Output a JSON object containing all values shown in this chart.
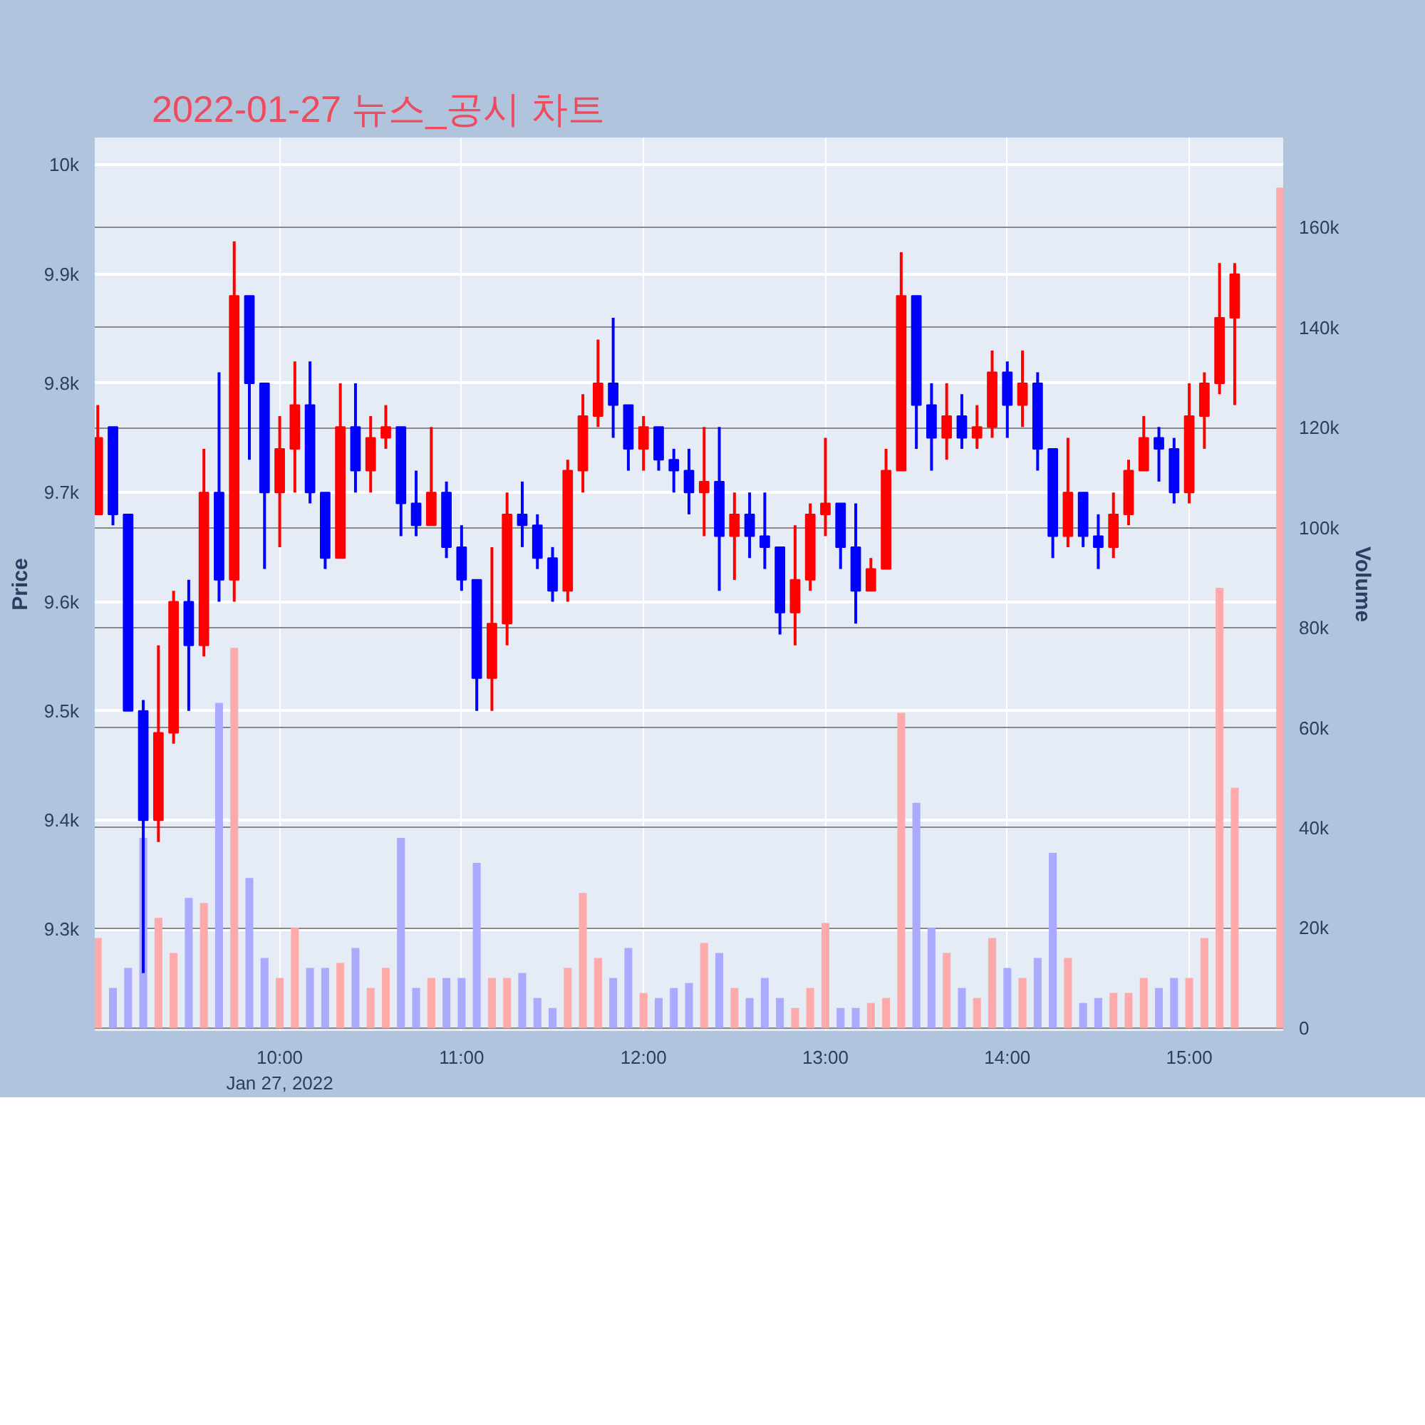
{
  "chart_data": {
    "type": "candlestick",
    "title": "2022-01-27 뉴스_공시 차트",
    "ylabel": "Price",
    "y2label": "Volume",
    "xlim": [
      "2022-01-27T08:59",
      "2022-01-27T15:31"
    ],
    "xticks": [
      {
        "value": "2022-01-27T10:00",
        "label": "10:00\nJan 27, 2022"
      },
      {
        "value": "2022-01-27T11:00",
        "label": "11:00"
      },
      {
        "value": "2022-01-27T12:00",
        "label": "12:00"
      },
      {
        "value": "2022-01-27T13:00",
        "label": "13:00"
      },
      {
        "value": "2022-01-27T14:00",
        "label": "14:00"
      },
      {
        "value": "2022-01-27T15:00",
        "label": "15:00"
      }
    ],
    "ylim": [
      9207,
      10025
    ],
    "yticks": [
      {
        "value": 9300,
        "label": "9.3k"
      },
      {
        "value": 9400,
        "label": "9.4k"
      },
      {
        "value": 9500,
        "label": "9.5k"
      },
      {
        "value": 9600,
        "label": "9.6k"
      },
      {
        "value": 9700,
        "label": "9.7k"
      },
      {
        "value": 9800,
        "label": "9.8k"
      },
      {
        "value": 9900,
        "label": "9.9k"
      },
      {
        "value": 10000,
        "label": "10k"
      }
    ],
    "y2lim": [
      -600,
      178000
    ],
    "y2ticks": [
      0,
      {
        "value": 20000,
        "label": "20k"
      },
      {
        "value": 40000,
        "label": "40k"
      },
      {
        "value": 60000,
        "label": "60k"
      },
      {
        "value": 80000,
        "label": "80k"
      },
      {
        "value": 100000,
        "label": "100k"
      },
      {
        "value": 120000,
        "label": "120k"
      },
      {
        "value": 140000,
        "label": "140k"
      },
      {
        "value": 160000,
        "label": "160k"
      }
    ],
    "grid": true,
    "series": [
      {
        "x": [
          "2022-01-27T09:00",
          "2022-01-27T09:05",
          "2022-01-27T09:10",
          "2022-01-27T09:15",
          "2022-01-27T09:20",
          "2022-01-27T09:25",
          "2022-01-27T09:30",
          "2022-01-27T09:35",
          "2022-01-27T09:40",
          "2022-01-27T09:45",
          "2022-01-27T09:50",
          "2022-01-27T09:55",
          "2022-01-27T10:00",
          "2022-01-27T10:05",
          "2022-01-27T10:10",
          "2022-01-27T10:15",
          "2022-01-27T10:20",
          "2022-01-27T10:25",
          "2022-01-27T10:30",
          "2022-01-27T10:35",
          "2022-01-27T10:40",
          "2022-01-27T10:45",
          "2022-01-27T10:50",
          "2022-01-27T10:55",
          "2022-01-27T11:00",
          "2022-01-27T11:05",
          "2022-01-27T11:10",
          "2022-01-27T11:15",
          "2022-01-27T11:20",
          "2022-01-27T11:25",
          "2022-01-27T11:30",
          "2022-01-27T11:35",
          "2022-01-27T11:40",
          "2022-01-27T11:45",
          "2022-01-27T11:50",
          "2022-01-27T11:55",
          "2022-01-27T12:00",
          "2022-01-27T12:05",
          "2022-01-27T12:10",
          "2022-01-27T12:15",
          "2022-01-27T12:20",
          "2022-01-27T12:25",
          "2022-01-27T12:30",
          "2022-01-27T12:35",
          "2022-01-27T12:40",
          "2022-01-27T12:45",
          "2022-01-27T12:50",
          "2022-01-27T12:55",
          "2022-01-27T13:00",
          "2022-01-27T13:05",
          "2022-01-27T13:10",
          "2022-01-27T13:15",
          "2022-01-27T13:20",
          "2022-01-27T13:25",
          "2022-01-27T13:30",
          "2022-01-27T13:35",
          "2022-01-27T13:40",
          "2022-01-27T13:45",
          "2022-01-27T13:50",
          "2022-01-27T13:55",
          "2022-01-27T14:00",
          "2022-01-27T14:05",
          "2022-01-27T14:10",
          "2022-01-27T14:15",
          "2022-01-27T14:20",
          "2022-01-27T14:25",
          "2022-01-27T14:30",
          "2022-01-27T14:35",
          "2022-01-27T14:40",
          "2022-01-27T14:45",
          "2022-01-27T14:50",
          "2022-01-27T14:55",
          "2022-01-27T15:00",
          "2022-01-27T15:05",
          "2022-01-27T15:10",
          "2022-01-27T15:15"
        ],
        "ohlc": [
          [
            9680,
            9780,
            9680,
            9750
          ],
          [
            9760,
            9760,
            9670,
            9680
          ],
          [
            9680,
            9680,
            9500,
            9500
          ],
          [
            9500,
            9510,
            9260,
            9400
          ],
          [
            9400,
            9560,
            9380,
            9480
          ],
          [
            9480,
            9610,
            9470,
            9600
          ],
          [
            9600,
            9620,
            9500,
            9560
          ],
          [
            9560,
            9740,
            9550,
            9700
          ],
          [
            9700,
            9810,
            9600,
            9620
          ],
          [
            9620,
            9930,
            9600,
            9880
          ],
          [
            9880,
            9880,
            9730,
            9800
          ],
          [
            9800,
            9800,
            9630,
            9700
          ],
          [
            9700,
            9770,
            9650,
            9740
          ],
          [
            9740,
            9820,
            9700,
            9780
          ],
          [
            9780,
            9820,
            9690,
            9700
          ],
          [
            9700,
            9700,
            9630,
            9640
          ],
          [
            9640,
            9800,
            9640,
            9760
          ],
          [
            9760,
            9800,
            9700,
            9720
          ],
          [
            9720,
            9770,
            9700,
            9750
          ],
          [
            9750,
            9780,
            9740,
            9760
          ],
          [
            9760,
            9760,
            9660,
            9690
          ],
          [
            9690,
            9720,
            9660,
            9670
          ],
          [
            9670,
            9760,
            9670,
            9700
          ],
          [
            9700,
            9710,
            9640,
            9650
          ],
          [
            9650,
            9670,
            9610,
            9620
          ],
          [
            9620,
            9620,
            9500,
            9530
          ],
          [
            9530,
            9650,
            9500,
            9580
          ],
          [
            9580,
            9700,
            9560,
            9680
          ],
          [
            9680,
            9710,
            9650,
            9670
          ],
          [
            9670,
            9680,
            9630,
            9640
          ],
          [
            9640,
            9650,
            9600,
            9610
          ],
          [
            9610,
            9730,
            9600,
            9720
          ],
          [
            9720,
            9790,
            9700,
            9770
          ],
          [
            9770,
            9840,
            9760,
            9800
          ],
          [
            9800,
            9860,
            9750,
            9780
          ],
          [
            9780,
            9780,
            9720,
            9740
          ],
          [
            9740,
            9770,
            9720,
            9760
          ],
          [
            9760,
            9760,
            9720,
            9730
          ],
          [
            9730,
            9740,
            9700,
            9720
          ],
          [
            9720,
            9740,
            9680,
            9700
          ],
          [
            9700,
            9760,
            9660,
            9710
          ],
          [
            9710,
            9760,
            9610,
            9660
          ],
          [
            9660,
            9700,
            9620,
            9680
          ],
          [
            9680,
            9700,
            9640,
            9660
          ],
          [
            9660,
            9700,
            9630,
            9650
          ],
          [
            9650,
            9650,
            9570,
            9590
          ],
          [
            9590,
            9670,
            9560,
            9620
          ],
          [
            9620,
            9690,
            9610,
            9680
          ],
          [
            9680,
            9750,
            9660,
            9690
          ],
          [
            9690,
            9690,
            9630,
            9650
          ],
          [
            9650,
            9690,
            9580,
            9610
          ],
          [
            9610,
            9640,
            9610,
            9630
          ],
          [
            9630,
            9740,
            9630,
            9720
          ],
          [
            9720,
            9920,
            9720,
            9880
          ],
          [
            9880,
            9880,
            9740,
            9780
          ],
          [
            9780,
            9800,
            9720,
            9750
          ],
          [
            9750,
            9800,
            9730,
            9770
          ],
          [
            9770,
            9790,
            9740,
            9750
          ],
          [
            9750,
            9780,
            9740,
            9760
          ],
          [
            9760,
            9830,
            9750,
            9810
          ],
          [
            9810,
            9820,
            9750,
            9780
          ],
          [
            9780,
            9830,
            9760,
            9800
          ],
          [
            9800,
            9810,
            9720,
            9740
          ],
          [
            9740,
            9740,
            9640,
            9660
          ],
          [
            9660,
            9750,
            9650,
            9700
          ],
          [
            9700,
            9700,
            9650,
            9660
          ],
          [
            9660,
            9680,
            9630,
            9650
          ],
          [
            9650,
            9700,
            9640,
            9680
          ],
          [
            9680,
            9730,
            9670,
            9720
          ],
          [
            9720,
            9770,
            9720,
            9750
          ],
          [
            9750,
            9760,
            9710,
            9740
          ],
          [
            9740,
            9750,
            9690,
            9700
          ],
          [
            9700,
            9800,
            9690,
            9770
          ],
          [
            9770,
            9810,
            9740,
            9800
          ],
          [
            9800,
            9910,
            9790,
            9860
          ],
          [
            9860,
            9910,
            9780,
            9900
          ]
        ],
        "colors": [
          "#ff0000",
          "#0000ff",
          "#0000ff",
          "#0000ff",
          "#ff0000",
          "#ff0000",
          "#0000ff",
          "#ff0000",
          "#0000ff",
          "#ff0000",
          "#0000ff",
          "#0000ff",
          "#ff0000",
          "#ff0000",
          "#0000ff",
          "#0000ff",
          "#ff0000",
          "#0000ff",
          "#ff0000",
          "#ff0000",
          "#0000ff",
          "#0000ff",
          "#ff0000",
          "#0000ff",
          "#0000ff",
          "#0000ff",
          "#ff0000",
          "#ff0000",
          "#0000ff",
          "#0000ff",
          "#0000ff",
          "#ff0000",
          "#ff0000",
          "#ff0000",
          "#0000ff",
          "#0000ff",
          "#ff0000",
          "#0000ff",
          "#0000ff",
          "#0000ff",
          "#ff0000",
          "#0000ff",
          "#ff0000",
          "#0000ff",
          "#0000ff",
          "#0000ff",
          "#ff0000",
          "#ff0000",
          "#ff0000",
          "#0000ff",
          "#0000ff",
          "#ff0000",
          "#ff0000",
          "#ff0000",
          "#0000ff",
          "#0000ff",
          "#ff0000",
          "#0000ff",
          "#ff0000",
          "#ff0000",
          "#0000ff",
          "#ff0000",
          "#0000ff",
          "#0000ff",
          "#ff0000",
          "#0000ff",
          "#0000ff",
          "#ff0000",
          "#ff0000",
          "#ff0000",
          "#0000ff",
          "#0000ff",
          "#ff0000",
          "#ff0000",
          "#ff0000",
          "#ff0000"
        ]
      },
      {
        "type": "bar",
        "axis": "y2",
        "x": [
          "2022-01-27T09:00",
          "2022-01-27T09:05",
          "2022-01-27T09:10",
          "2022-01-27T09:15",
          "2022-01-27T09:20",
          "2022-01-27T09:25",
          "2022-01-27T09:30",
          "2022-01-27T09:35",
          "2022-01-27T09:40",
          "2022-01-27T09:45",
          "2022-01-27T09:50",
          "2022-01-27T09:55",
          "2022-01-27T10:00",
          "2022-01-27T10:05",
          "2022-01-27T10:10",
          "2022-01-27T10:15",
          "2022-01-27T10:20",
          "2022-01-27T10:25",
          "2022-01-27T10:30",
          "2022-01-27T10:35",
          "2022-01-27T10:40",
          "2022-01-27T10:45",
          "2022-01-27T10:50",
          "2022-01-27T10:55",
          "2022-01-27T11:00",
          "2022-01-27T11:05",
          "2022-01-27T11:10",
          "2022-01-27T11:15",
          "2022-01-27T11:20",
          "2022-01-27T11:25",
          "2022-01-27T11:30",
          "2022-01-27T11:35",
          "2022-01-27T11:40",
          "2022-01-27T11:45",
          "2022-01-27T11:50",
          "2022-01-27T11:55",
          "2022-01-27T12:00",
          "2022-01-27T12:05",
          "2022-01-27T12:10",
          "2022-01-27T12:15",
          "2022-01-27T12:20",
          "2022-01-27T12:25",
          "2022-01-27T12:30",
          "2022-01-27T12:35",
          "2022-01-27T12:40",
          "2022-01-27T12:45",
          "2022-01-27T12:50",
          "2022-01-27T12:55",
          "2022-01-27T13:00",
          "2022-01-27T13:05",
          "2022-01-27T13:10",
          "2022-01-27T13:15",
          "2022-01-27T13:20",
          "2022-01-27T13:25",
          "2022-01-27T13:30",
          "2022-01-27T13:35",
          "2022-01-27T13:40",
          "2022-01-27T13:45",
          "2022-01-27T13:50",
          "2022-01-27T13:55",
          "2022-01-27T14:00",
          "2022-01-27T14:05",
          "2022-01-27T14:10",
          "2022-01-27T14:15",
          "2022-01-27T14:20",
          "2022-01-27T14:25",
          "2022-01-27T14:30",
          "2022-01-27T14:35",
          "2022-01-27T14:40",
          "2022-01-27T14:45",
          "2022-01-27T14:50",
          "2022-01-27T14:55",
          "2022-01-27T15:00",
          "2022-01-27T15:05",
          "2022-01-27T15:10",
          "2022-01-27T15:15",
          "2022-01-27T15:30"
        ],
        "values": [
          18000,
          8000,
          12000,
          38000,
          22000,
          15000,
          26000,
          25000,
          65000,
          76000,
          30000,
          14000,
          10000,
          20000,
          12000,
          12000,
          13000,
          16000,
          8000,
          12000,
          38000,
          8000,
          10000,
          10000,
          10000,
          33000,
          10000,
          10000,
          11000,
          6000,
          4000,
          12000,
          27000,
          14000,
          10000,
          16000,
          7000,
          6000,
          8000,
          9000,
          17000,
          15000,
          8000,
          6000,
          10000,
          6000,
          4000,
          8000,
          21000,
          4000,
          4000,
          5000,
          6000,
          63000,
          45000,
          20000,
          15000,
          8000,
          6000,
          18000,
          12000,
          10000,
          14000,
          35000,
          14000,
          5000,
          6000,
          7000,
          7000,
          10000,
          8000,
          10000,
          10000,
          18000,
          88000,
          48000,
          168000
        ],
        "colors": [
          "#ffaaaa",
          "#aaaaff",
          "#aaaaff",
          "#aaaaff",
          "#ffaaaa",
          "#ffaaaa",
          "#aaaaff",
          "#ffaaaa",
          "#aaaaff",
          "#ffaaaa",
          "#aaaaff",
          "#aaaaff",
          "#ffaaaa",
          "#ffaaaa",
          "#aaaaff",
          "#aaaaff",
          "#ffaaaa",
          "#aaaaff",
          "#ffaaaa",
          "#ffaaaa",
          "#aaaaff",
          "#aaaaff",
          "#ffaaaa",
          "#aaaaff",
          "#aaaaff",
          "#aaaaff",
          "#ffaaaa",
          "#ffaaaa",
          "#aaaaff",
          "#aaaaff",
          "#aaaaff",
          "#ffaaaa",
          "#ffaaaa",
          "#ffaaaa",
          "#aaaaff",
          "#aaaaff",
          "#ffaaaa",
          "#aaaaff",
          "#aaaaff",
          "#aaaaff",
          "#ffaaaa",
          "#aaaaff",
          "#ffaaaa",
          "#aaaaff",
          "#aaaaff",
          "#aaaaff",
          "#ffaaaa",
          "#ffaaaa",
          "#ffaaaa",
          "#aaaaff",
          "#aaaaff",
          "#ffaaaa",
          "#ffaaaa",
          "#ffaaaa",
          "#aaaaff",
          "#aaaaff",
          "#ffaaaa",
          "#aaaaff",
          "#ffaaaa",
          "#ffaaaa",
          "#aaaaff",
          "#ffaaaa",
          "#aaaaff",
          "#aaaaff",
          "#ffaaaa",
          "#aaaaff",
          "#aaaaff",
          "#ffaaaa",
          "#ffaaaa",
          "#ffaaaa",
          "#aaaaff",
          "#aaaaff",
          "#ffaaaa",
          "#ffaaaa",
          "#ffaaaa",
          "#ffaaaa",
          "#ffaaaa"
        ]
      }
    ]
  }
}
